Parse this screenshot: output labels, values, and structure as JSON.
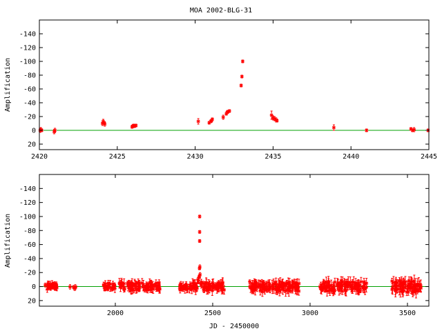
{
  "title": "MOA 2002-BLG-31",
  "colors": {
    "points": "#ff0000",
    "baseline": "#00a000",
    "axes": "#000000"
  },
  "chart_data": [
    {
      "type": "scatter",
      "title": "MOA 2002-BLG-31",
      "xlabel": "",
      "ylabel": "Amplification",
      "xlim": [
        2420,
        2445
      ],
      "ylim": [
        28,
        -160
      ],
      "y_inverted": true,
      "xticks": [
        2420,
        2425,
        2430,
        2435,
        2440,
        2445
      ],
      "yticks": [
        20,
        0,
        -20,
        -40,
        -60,
        -80,
        -100,
        -120,
        -140
      ],
      "baseline_y": 0,
      "grid": false,
      "legend": "none",
      "series": [
        {
          "points": [
            [
              2420.05,
              0,
              3
            ],
            [
              2420.1,
              -1,
              3
            ],
            [
              2420.15,
              0,
              2
            ],
            [
              2420.95,
              2,
              3
            ],
            [
              2421.0,
              0,
              3
            ],
            [
              2424.05,
              -10,
              3
            ],
            [
              2424.1,
              -13,
              3
            ],
            [
              2424.15,
              -11,
              2
            ],
            [
              2424.2,
              -9,
              3
            ],
            [
              2425.95,
              -5,
              2
            ],
            [
              2426.0,
              -6,
              2
            ],
            [
              2426.05,
              -7,
              2
            ],
            [
              2426.1,
              -6,
              2
            ],
            [
              2426.2,
              -7,
              2
            ],
            [
              2430.2,
              -13,
              4
            ],
            [
              2430.9,
              -11,
              2
            ],
            [
              2431.0,
              -13,
              2
            ],
            [
              2431.05,
              -14,
              2
            ],
            [
              2431.1,
              -16,
              2
            ],
            [
              2431.8,
              -19,
              3
            ],
            [
              2432.0,
              -24,
              2
            ],
            [
              2432.05,
              -26,
              2
            ],
            [
              2432.1,
              -27,
              2
            ],
            [
              2432.2,
              -28,
              2
            ],
            [
              2432.95,
              -65,
              2
            ],
            [
              2433.0,
              -78,
              2
            ],
            [
              2433.05,
              -100,
              2
            ],
            [
              2434.9,
              -22,
              6
            ],
            [
              2435.0,
              -18,
              3
            ],
            [
              2435.1,
              -17,
              3
            ],
            [
              2435.2,
              -15,
              3
            ],
            [
              2435.25,
              -14,
              2
            ],
            [
              2438.9,
              -4,
              4
            ],
            [
              2441.0,
              0,
              2
            ],
            [
              2443.85,
              -2,
              2
            ],
            [
              2443.95,
              0,
              2
            ],
            [
              2444.05,
              -1,
              3
            ],
            [
              2444.95,
              0,
              2
            ]
          ]
        }
      ]
    },
    {
      "type": "scatter",
      "title": "",
      "xlabel": "JD - 2450000",
      "ylabel": "Amplification",
      "xlim": [
        1610,
        3610
      ],
      "ylim": [
        28,
        -160
      ],
      "y_inverted": true,
      "xticks": [
        2000,
        2500,
        3000,
        3500
      ],
      "yticks": [
        20,
        0,
        -20,
        -40,
        -60,
        -80,
        -100,
        -120,
        -140
      ],
      "baseline_y": 0,
      "grid": false,
      "legend": "none",
      "seasons": [
        {
          "range": [
            1640,
            1700
          ],
          "count": 28,
          "spread": 5,
          "err": 4
        },
        {
          "range": [
            1760,
            1800
          ],
          "count": 6,
          "spread": 3,
          "err": 3
        },
        {
          "range": [
            1940,
            2010
          ],
          "count": 22,
          "spread": 5,
          "err": 4
        },
        {
          "range": [
            2020,
            2230
          ],
          "count": 90,
          "spread": 6,
          "err": 5
        },
        {
          "range": [
            2330,
            2420
          ],
          "count": 40,
          "spread": 5,
          "err": 5
        },
        {
          "range": [
            2440,
            2560
          ],
          "count": 55,
          "spread": 6,
          "err": 5
        },
        {
          "range": [
            2690,
            2950
          ],
          "count": 120,
          "spread": 7,
          "err": 6
        },
        {
          "range": [
            3050,
            3290
          ],
          "count": 110,
          "spread": 7,
          "err": 6
        },
        {
          "range": [
            3420,
            3570
          ],
          "count": 70,
          "spread": 8,
          "err": 7
        }
      ],
      "series": [
        {
          "points": [
            [
              2424.1,
              -10,
              3
            ],
            [
              2426.1,
              -6,
              2
            ],
            [
              2430.2,
              -13,
              4
            ],
            [
              2431.0,
              -14,
              2
            ],
            [
              2432.1,
              -26,
              2
            ],
            [
              2432.95,
              -65,
              2
            ],
            [
              2433.0,
              -78,
              2
            ],
            [
              2433.05,
              -100,
              2
            ],
            [
              2434.0,
              -28,
              3
            ],
            [
              2435.1,
              -17,
              3
            ],
            [
              2438.9,
              -4,
              4
            ]
          ]
        }
      ]
    }
  ]
}
